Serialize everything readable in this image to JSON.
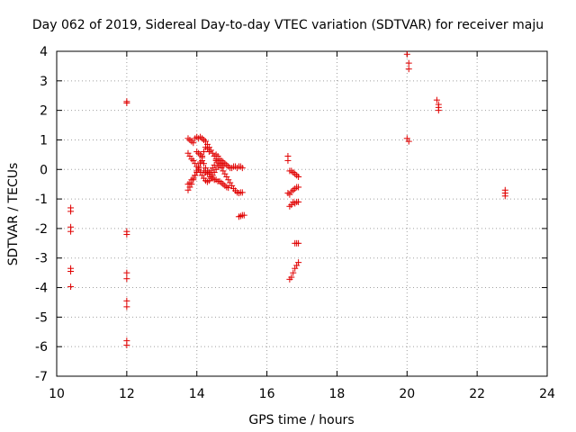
{
  "chart_data": {
    "type": "scatter",
    "title": "Day 062 of 2019, Sidereal Day-to-day VTEC variation (SDTVAR) for receiver maju",
    "xlabel": "GPS time / hours",
    "ylabel": "SDTVAR / TECUs",
    "xlim": [
      10,
      24
    ],
    "ylim": [
      -7,
      4
    ],
    "xticks": [
      10,
      12,
      14,
      16,
      18,
      20,
      22,
      24
    ],
    "yticks": [
      -7,
      -6,
      -5,
      -4,
      -3,
      -2,
      -1,
      0,
      1,
      2,
      3,
      4
    ],
    "grid": true,
    "marker_color": "#e00000",
    "points": [
      [
        10.4,
        -1.3
      ],
      [
        10.4,
        -1.42
      ],
      [
        10.4,
        -1.95
      ],
      [
        10.4,
        -2.1
      ],
      [
        10.4,
        -3.35
      ],
      [
        10.4,
        -3.45
      ],
      [
        10.4,
        -3.97
      ],
      [
        12.0,
        2.3
      ],
      [
        12.0,
        2.25
      ],
      [
        12.0,
        -2.1
      ],
      [
        12.0,
        -2.2
      ],
      [
        12.0,
        -3.5
      ],
      [
        12.0,
        -3.7
      ],
      [
        12.0,
        -4.45
      ],
      [
        12.0,
        -4.65
      ],
      [
        12.0,
        -5.8
      ],
      [
        12.0,
        -5.95
      ],
      [
        13.75,
        1.05
      ],
      [
        13.8,
        1.0
      ],
      [
        13.85,
        0.95
      ],
      [
        13.9,
        0.9
      ],
      [
        13.95,
        1.05
      ],
      [
        14.0,
        1.1
      ],
      [
        14.05,
        1.05
      ],
      [
        14.1,
        1.1
      ],
      [
        14.15,
        1.05
      ],
      [
        14.2,
        1.0
      ],
      [
        14.25,
        0.95
      ],
      [
        14.3,
        0.85
      ],
      [
        14.35,
        0.75
      ],
      [
        14.4,
        0.65
      ],
      [
        14.45,
        0.55
      ],
      [
        14.5,
        0.45
      ],
      [
        14.55,
        0.35
      ],
      [
        14.6,
        0.25
      ],
      [
        14.65,
        0.15
      ],
      [
        14.7,
        0.05
      ],
      [
        14.75,
        -0.05
      ],
      [
        14.8,
        -0.15
      ],
      [
        14.85,
        -0.25
      ],
      [
        14.9,
        -0.35
      ],
      [
        14.95,
        -0.45
      ],
      [
        15.0,
        -0.55
      ],
      [
        15.05,
        -0.65
      ],
      [
        15.1,
        -0.72
      ],
      [
        15.15,
        -0.78
      ],
      [
        15.2,
        -0.8
      ],
      [
        15.25,
        -0.78
      ],
      [
        15.3,
        -0.78
      ],
      [
        13.75,
        0.55
      ],
      [
        13.8,
        0.45
      ],
      [
        13.85,
        0.35
      ],
      [
        13.9,
        0.3
      ],
      [
        13.95,
        0.2
      ],
      [
        14.0,
        0.1
      ],
      [
        14.05,
        0.0
      ],
      [
        14.1,
        -0.1
      ],
      [
        14.15,
        -0.2
      ],
      [
        14.2,
        -0.3
      ],
      [
        14.25,
        -0.38
      ],
      [
        14.3,
        -0.42
      ],
      [
        14.35,
        -0.38
      ],
      [
        14.4,
        -0.3
      ],
      [
        14.45,
        -0.2
      ],
      [
        14.5,
        -0.1
      ],
      [
        14.55,
        0.0
      ],
      [
        14.6,
        0.1
      ],
      [
        14.65,
        0.2
      ],
      [
        14.7,
        0.3
      ],
      [
        14.75,
        0.25
      ],
      [
        14.8,
        0.2
      ],
      [
        14.85,
        0.15
      ],
      [
        14.9,
        0.1
      ],
      [
        14.95,
        0.05
      ],
      [
        15.0,
        0.05
      ],
      [
        15.05,
        0.1
      ],
      [
        15.1,
        0.1
      ],
      [
        15.15,
        0.05
      ],
      [
        15.2,
        0.1
      ],
      [
        15.25,
        0.1
      ],
      [
        15.3,
        0.05
      ],
      [
        13.75,
        -0.5
      ],
      [
        13.8,
        -0.45
      ],
      [
        13.85,
        -0.35
      ],
      [
        13.9,
        -0.3
      ],
      [
        13.95,
        -0.2
      ],
      [
        14.0,
        -0.1
      ],
      [
        14.05,
        0.05
      ],
      [
        14.1,
        0.2
      ],
      [
        14.15,
        0.3
      ],
      [
        14.2,
        0.2
      ],
      [
        14.25,
        0.05
      ],
      [
        14.3,
        -0.05
      ],
      [
        14.35,
        -0.15
      ],
      [
        14.4,
        -0.25
      ],
      [
        14.45,
        -0.3
      ],
      [
        14.5,
        -0.35
      ],
      [
        14.55,
        -0.35
      ],
      [
        14.6,
        -0.4
      ],
      [
        14.65,
        -0.4
      ],
      [
        14.7,
        -0.45
      ],
      [
        14.75,
        -0.5
      ],
      [
        14.8,
        -0.55
      ],
      [
        14.85,
        -0.6
      ],
      [
        14.9,
        -0.62
      ],
      [
        13.75,
        -0.7
      ],
      [
        13.8,
        -0.6
      ],
      [
        13.85,
        -0.5
      ],
      [
        13.9,
        -0.35
      ],
      [
        13.95,
        -0.2
      ],
      [
        14.0,
        -0.05
      ],
      [
        14.05,
        0.1
      ],
      [
        14.1,
        0.25
      ],
      [
        14.15,
        0.4
      ],
      [
        14.2,
        0.6
      ],
      [
        14.25,
        0.75
      ],
      [
        14.3,
        0.7
      ],
      [
        14.35,
        0.6
      ],
      [
        14.0,
        0.6
      ],
      [
        14.05,
        0.55
      ],
      [
        14.1,
        0.5
      ],
      [
        14.15,
        0.45
      ],
      [
        14.55,
        0.5
      ],
      [
        14.6,
        0.45
      ],
      [
        14.65,
        0.35
      ],
      [
        14.7,
        0.2
      ],
      [
        14.75,
        0.1
      ],
      [
        14.2,
        -0.05
      ],
      [
        14.25,
        -0.1
      ],
      [
        14.3,
        -0.15
      ],
      [
        14.35,
        -0.1
      ],
      [
        14.4,
        -0.05
      ],
      [
        14.45,
        0.05
      ],
      [
        14.5,
        0.15
      ],
      [
        14.55,
        0.3
      ],
      [
        15.2,
        -1.6
      ],
      [
        15.25,
        -1.58
      ],
      [
        15.3,
        -1.55
      ],
      [
        15.35,
        -1.55
      ],
      [
        16.6,
        0.45
      ],
      [
        16.6,
        0.3
      ],
      [
        16.65,
        -0.05
      ],
      [
        16.7,
        -0.05
      ],
      [
        16.75,
        -0.1
      ],
      [
        16.8,
        -0.15
      ],
      [
        16.85,
        -0.2
      ],
      [
        16.9,
        -0.25
      ],
      [
        16.6,
        -0.8
      ],
      [
        16.65,
        -0.85
      ],
      [
        16.7,
        -0.75
      ],
      [
        16.75,
        -0.7
      ],
      [
        16.8,
        -0.65
      ],
      [
        16.85,
        -0.6
      ],
      [
        16.9,
        -0.6
      ],
      [
        16.65,
        -1.25
      ],
      [
        16.7,
        -1.2
      ],
      [
        16.75,
        -1.1
      ],
      [
        16.8,
        -1.15
      ],
      [
        16.85,
        -1.1
      ],
      [
        16.9,
        -1.1
      ],
      [
        16.8,
        -2.5
      ],
      [
        16.85,
        -2.5
      ],
      [
        16.9,
        -2.5
      ],
      [
        16.65,
        -3.72
      ],
      [
        16.7,
        -3.65
      ],
      [
        16.75,
        -3.5
      ],
      [
        16.8,
        -3.35
      ],
      [
        16.85,
        -3.25
      ],
      [
        16.9,
        -3.15
      ],
      [
        20.0,
        3.9
      ],
      [
        20.05,
        3.6
      ],
      [
        20.05,
        3.4
      ],
      [
        20.0,
        1.05
      ],
      [
        20.05,
        0.95
      ],
      [
        20.85,
        2.35
      ],
      [
        20.9,
        2.2
      ],
      [
        20.9,
        2.1
      ],
      [
        20.9,
        2.0
      ],
      [
        22.8,
        -0.7
      ],
      [
        22.8,
        -0.8
      ],
      [
        22.8,
        -0.9
      ]
    ]
  }
}
